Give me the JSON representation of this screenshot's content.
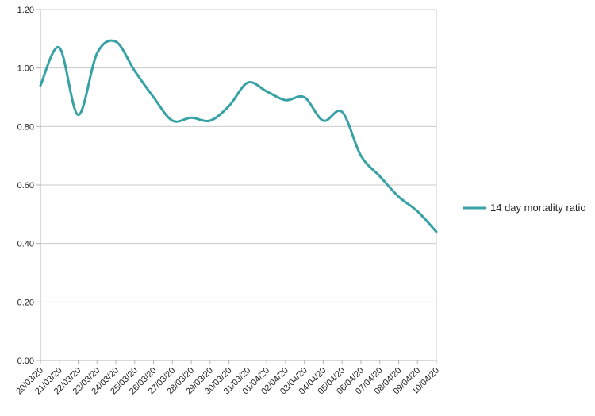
{
  "chart_data": {
    "type": "line",
    "title": "",
    "xlabel": "",
    "ylabel": "",
    "x": [
      "20/03/20",
      "21/03/20",
      "22/03/20",
      "23/03/20",
      "24/03/20",
      "25/03/20",
      "26/03/20",
      "27/03/20",
      "28/03/20",
      "29/03/20",
      "30/03/20",
      "31/03/20",
      "01/04/20",
      "02/04/20",
      "03/04/20",
      "04/04/20",
      "05/04/20",
      "06/04/20",
      "07/04/20",
      "08/04/20",
      "09/04/20",
      "10/04/20"
    ],
    "series": [
      {
        "name": "14 day mortality ratio",
        "color": "#36a2a6",
        "values": [
          0.94,
          1.07,
          0.84,
          1.05,
          1.09,
          0.99,
          0.9,
          0.82,
          0.83,
          0.82,
          0.87,
          0.95,
          0.92,
          0.89,
          0.9,
          0.82,
          0.85,
          0.7,
          0.63,
          0.56,
          0.51,
          0.44
        ]
      }
    ],
    "ylim": [
      0,
      1.2
    ],
    "y_tick_labels": [
      "0.00",
      "0.20",
      "0.40",
      "0.60",
      "0.80",
      "1.00",
      "1.20"
    ],
    "grid": "horizontal",
    "legend_position": "right",
    "smooth_lines": true
  },
  "colors": {
    "line": "#36a2a6",
    "gridline": "#c9c9c9",
    "axis": "#b3b3b3",
    "text": "#1f1f1f",
    "background": "#ffffff"
  }
}
